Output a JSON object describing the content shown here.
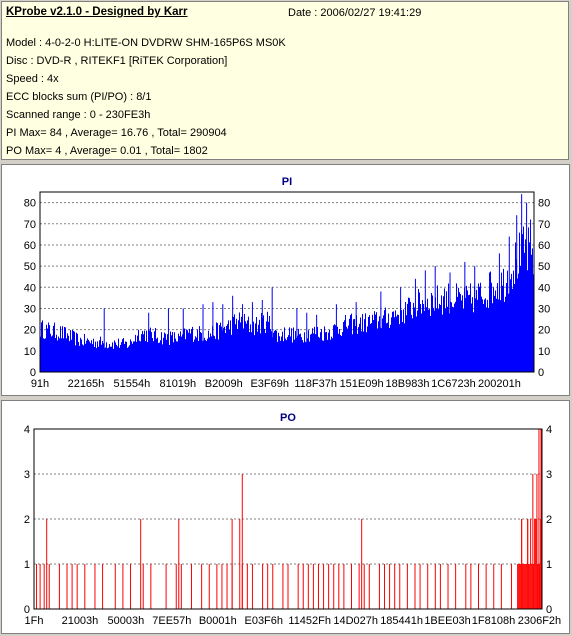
{
  "header": {
    "title": "KProbe v2.1.0 - Designed by Karr",
    "date": "Date : 2006/02/27 19:41:29",
    "lines": [
      "Model : 4-0-2-0 H:LITE-ON DVDRW SHM-165P6S MS0K",
      "Disc : DVD-R , RITEKF1 [RiTEK Corporation]",
      "Speed : 4x",
      "ECC blocks sum (PI/PO) : 8/1",
      "Scanned range : 0 - 230FE3h",
      "PI Max= 84 , Average= 16.76 , Total= 290904",
      "PO Max= 4 , Average= 0.01 , Total= 1802"
    ]
  },
  "colors": {
    "pi": "#0000ff",
    "po": "#ff0000",
    "title": "#000080",
    "grid": "#808080"
  },
  "chart_data": [
    {
      "type": "bar",
      "title": "PI",
      "ylim": [
        0,
        85
      ],
      "yticks": [
        0,
        10,
        20,
        30,
        40,
        50,
        60,
        70,
        80
      ],
      "xticks": [
        "91h",
        "22165h",
        "51554h",
        "81019h",
        "B2009h",
        "E3F69h",
        "118F37h",
        "151E09h",
        "18B983h",
        "1C6723h",
        "200201h"
      ],
      "max": 84,
      "average": 16.76,
      "profile": [
        [
          0,
          22
        ],
        [
          0.04,
          20
        ],
        [
          0.08,
          16
        ],
        [
          0.12,
          15
        ],
        [
          0.18,
          14
        ],
        [
          0.2,
          20
        ],
        [
          0.24,
          18
        ],
        [
          0.28,
          17
        ],
        [
          0.3,
          20
        ],
        [
          0.34,
          19
        ],
        [
          0.38,
          23
        ],
        [
          0.4,
          26
        ],
        [
          0.43,
          23
        ],
        [
          0.46,
          26
        ],
        [
          0.48,
          18
        ],
        [
          0.5,
          20
        ],
        [
          0.52,
          18
        ],
        [
          0.55,
          20
        ],
        [
          0.58,
          20
        ],
        [
          0.62,
          24
        ],
        [
          0.66,
          25
        ],
        [
          0.7,
          27
        ],
        [
          0.72,
          30
        ],
        [
          0.74,
          31
        ],
        [
          0.76,
          34
        ],
        [
          0.78,
          36
        ],
        [
          0.8,
          36
        ],
        [
          0.82,
          38
        ],
        [
          0.84,
          37
        ],
        [
          0.86,
          36
        ],
        [
          0.88,
          38
        ],
        [
          0.9,
          40
        ],
        [
          0.92,
          44
        ],
        [
          0.94,
          46
        ],
        [
          0.96,
          55
        ],
        [
          0.98,
          62
        ],
        [
          1.0,
          58
        ]
      ],
      "spikes": [
        [
          0.13,
          30
        ],
        [
          0.22,
          28
        ],
        [
          0.26,
          30
        ],
        [
          0.29,
          30
        ],
        [
          0.33,
          32
        ],
        [
          0.35,
          33
        ],
        [
          0.37,
          32
        ],
        [
          0.39,
          36
        ],
        [
          0.41,
          32
        ],
        [
          0.43,
          33
        ],
        [
          0.45,
          34
        ],
        [
          0.47,
          40
        ],
        [
          0.52,
          30
        ],
        [
          0.54,
          28
        ],
        [
          0.56,
          27
        ],
        [
          0.6,
          32
        ],
        [
          0.64,
          33
        ],
        [
          0.69,
          38
        ],
        [
          0.73,
          40
        ],
        [
          0.76,
          44
        ],
        [
          0.78,
          48
        ],
        [
          0.8,
          50
        ],
        [
          0.83,
          47
        ],
        [
          0.86,
          52
        ],
        [
          0.88,
          50
        ],
        [
          0.91,
          47
        ],
        [
          0.93,
          56
        ],
        [
          0.95,
          64
        ],
        [
          0.965,
          74
        ],
        [
          0.975,
          84
        ],
        [
          0.985,
          80
        ],
        [
          0.993,
          72
        ]
      ]
    },
    {
      "type": "bar",
      "title": "PO",
      "ylim": [
        0,
        4
      ],
      "yticks": [
        0,
        1,
        2,
        3,
        4
      ],
      "xticks": [
        "1Fh",
        "21003h",
        "50003h",
        "7EE57h",
        "B0001h",
        "E03F6h",
        "11452Fh",
        "14D027h",
        "185441h",
        "1BEE03h",
        "1F8108h",
        "2306F2h"
      ],
      "max": 4,
      "average": 0.01,
      "ones": [
        0.005,
        0.012,
        0.02,
        0.03,
        0.05,
        0.065,
        0.075,
        0.085,
        0.1,
        0.12,
        0.135,
        0.16,
        0.175,
        0.19,
        0.215,
        0.23,
        0.26,
        0.28,
        0.29,
        0.31,
        0.33,
        0.345,
        0.36,
        0.37,
        0.38,
        0.39,
        0.41,
        0.42,
        0.43,
        0.45,
        0.46,
        0.47,
        0.49,
        0.5,
        0.52,
        0.53,
        0.54,
        0.55,
        0.56,
        0.57,
        0.58,
        0.59,
        0.6,
        0.61,
        0.625,
        0.64,
        0.65,
        0.66,
        0.68,
        0.69,
        0.7,
        0.71,
        0.72,
        0.735,
        0.75,
        0.76,
        0.775,
        0.79,
        0.8,
        0.815,
        0.83,
        0.85,
        0.86,
        0.875,
        0.89,
        0.905,
        0.92,
        0.94
      ],
      "twos": [
        0.025,
        0.21,
        0.285,
        0.39,
        0.405,
        0.645,
        0.96,
        0.972
      ],
      "threes": [
        0.41,
        0.982,
        0.99
      ],
      "fours": [
        0.994,
        0.998
      ],
      "dense_range": [
        0.952,
        1.0
      ]
    }
  ]
}
